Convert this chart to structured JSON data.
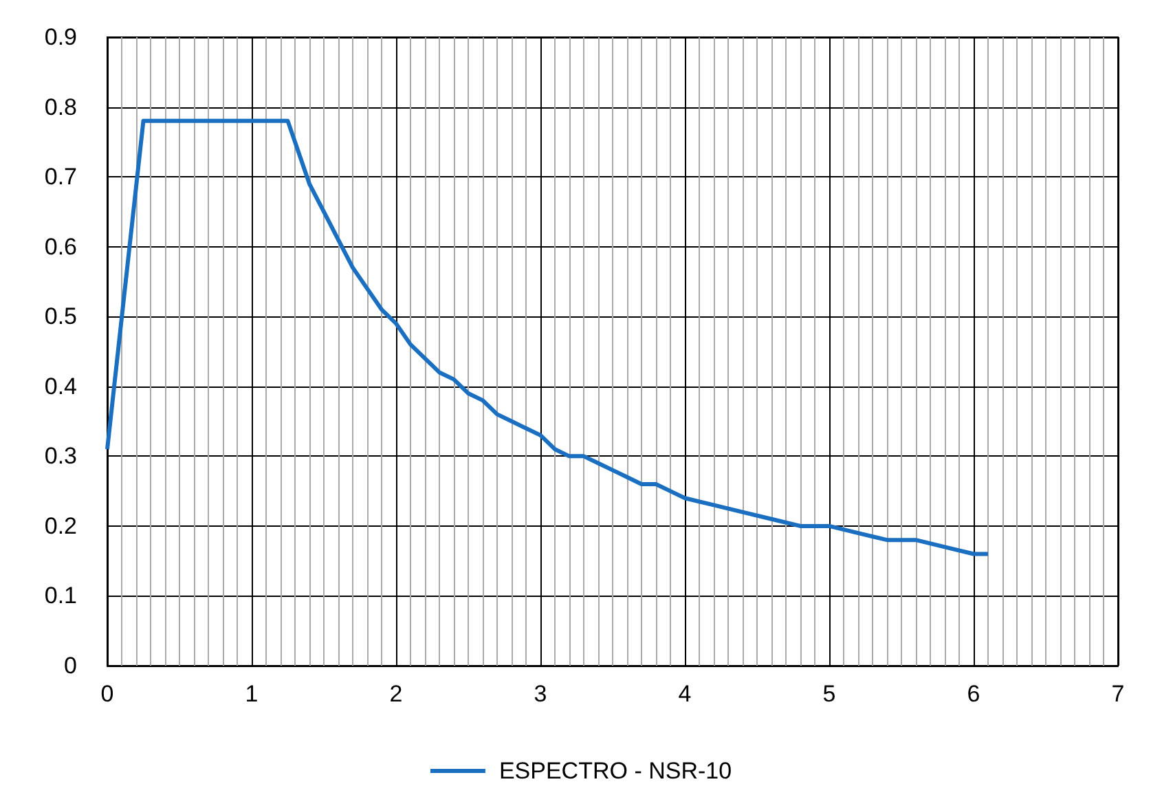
{
  "chart_data": {
    "type": "line",
    "x": [
      0,
      0.25,
      1.25,
      1.3,
      1.4,
      1.5,
      1.6,
      1.7,
      1.8,
      1.9,
      2.0,
      2.1,
      2.2,
      2.3,
      2.4,
      2.5,
      2.6,
      2.7,
      2.8,
      2.9,
      3.0,
      3.1,
      3.2,
      3.3,
      3.4,
      3.5,
      3.6,
      3.7,
      3.8,
      3.9,
      4.0,
      4.2,
      4.4,
      4.6,
      4.8,
      5.0,
      5.2,
      5.4,
      5.6,
      5.8,
      6.0,
      6.1
    ],
    "series": [
      {
        "name": "ESPECTRO - NSR-10",
        "color": "#1a6fc0",
        "values": [
          0.31,
          0.78,
          0.78,
          0.75,
          0.69,
          0.65,
          0.61,
          0.57,
          0.54,
          0.51,
          0.49,
          0.46,
          0.44,
          0.42,
          0.41,
          0.39,
          0.38,
          0.36,
          0.35,
          0.34,
          0.33,
          0.31,
          0.3,
          0.3,
          0.29,
          0.28,
          0.27,
          0.26,
          0.26,
          0.25,
          0.24,
          0.23,
          0.22,
          0.21,
          0.2,
          0.2,
          0.19,
          0.18,
          0.18,
          0.17,
          0.16,
          0.16
        ]
      }
    ],
    "xlim": [
      0,
      7
    ],
    "xticks": [
      0,
      1,
      2,
      3,
      4,
      5,
      6,
      7
    ],
    "ylim": [
      0,
      0.9
    ],
    "yticks": [
      0,
      0.1,
      0.2,
      0.3,
      0.4,
      0.5,
      0.6,
      0.7,
      0.8,
      0.9
    ],
    "grid": true,
    "legend": "bottom",
    "marker": "none",
    "line_style": "solid"
  }
}
